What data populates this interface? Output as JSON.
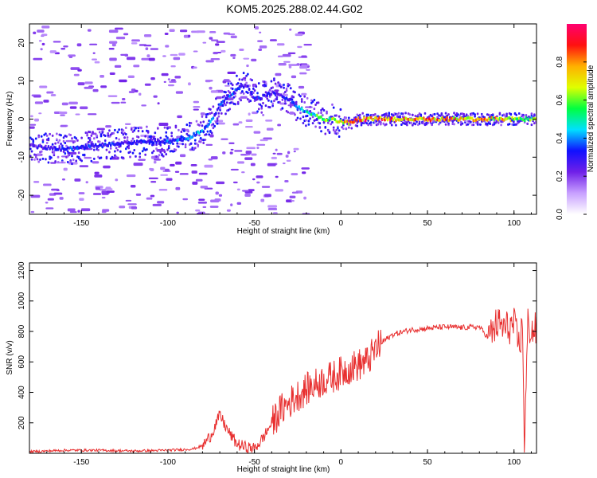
{
  "figure_title": "KOM5.2025.288.02.44.G02",
  "chart_data": [
    {
      "type": "heatmap",
      "title": "KOM5.2025.288.02.44.G02",
      "xlabel": "Height of straight line (km)",
      "ylabel": "Frequency (Hz)",
      "xlim": [
        -180,
        113
      ],
      "ylim": [
        -25,
        25
      ],
      "x_ticks": [
        -150,
        -100,
        -50,
        0,
        50,
        100
      ],
      "x_tick_labels": [
        "-150",
        "-100",
        "-50",
        "0",
        "50",
        "100"
      ],
      "y_ticks": [
        -20,
        -10,
        0,
        10,
        20
      ],
      "y_tick_labels": [
        "-20",
        "-10",
        "0",
        "10",
        "20"
      ],
      "colorbar": {
        "label": "Normalized spectral amplitude",
        "range": [
          0,
          1
        ],
        "ticks": [
          0.0,
          0.2,
          0.4,
          0.6,
          0.8
        ],
        "tick_labels": [
          "0.0",
          "0.2",
          "0.4",
          "0.6",
          "0.8"
        ],
        "colors": [
          "#ffffff",
          "#c8a0ff",
          "#7020e8",
          "#1010ff",
          "#00e0ff",
          "#00ff40",
          "#e0ff00",
          "#ffb000",
          "#ff1010",
          "#ff0070"
        ]
      },
      "ridge": {
        "height_km": [
          -180,
          -160,
          -140,
          -120,
          -100,
          -90,
          -80,
          -75,
          -70,
          -65,
          -60,
          -55,
          -50,
          -45,
          -40,
          -35,
          -30,
          -25,
          -20,
          -15,
          -10,
          -5,
          0,
          5,
          10,
          20,
          40,
          60,
          80,
          100,
          113
        ],
        "freq_hz": [
          -7,
          -8,
          -7,
          -6,
          -6,
          -5,
          -3,
          0,
          4,
          6,
          8,
          9,
          5,
          6,
          7,
          6,
          5,
          3,
          2,
          1,
          0,
          0,
          -1,
          -1,
          0,
          0,
          0,
          0,
          0,
          0,
          0
        ],
        "amplitude": [
          0.25,
          0.35,
          0.35,
          0.3,
          0.4,
          0.4,
          0.45,
          0.4,
          0.35,
          0.4,
          0.35,
          0.3,
          0.35,
          0.3,
          0.3,
          0.3,
          0.35,
          0.4,
          0.5,
          0.6,
          0.6,
          0.7,
          0.8,
          0.85,
          0.9,
          0.92,
          0.88,
          0.85,
          0.8,
          0.75,
          0.6
        ]
      }
    },
    {
      "type": "line",
      "title": "",
      "xlabel": "Height of straight line (km)",
      "ylabel": "SNR (v/v)",
      "xlim": [
        -180,
        113
      ],
      "ylim": [
        0,
        1250
      ],
      "x_ticks": [
        -150,
        -100,
        -50,
        0,
        50,
        100
      ],
      "x_tick_labels": [
        "-150",
        "-100",
        "-50",
        "0",
        "50",
        "100"
      ],
      "y_ticks": [
        200,
        400,
        600,
        800,
        1000,
        1200
      ],
      "y_tick_labels": [
        "200",
        "400",
        "600",
        "800",
        "1000",
        "1200"
      ],
      "color": "#e83030",
      "series": [
        {
          "name": "SNR",
          "x": [
            -180,
            -160,
            -140,
            -120,
            -100,
            -90,
            -85,
            -80,
            -75,
            -72,
            -70,
            -65,
            -60,
            -55,
            -50,
            -45,
            -40,
            -35,
            -30,
            -25,
            -20,
            -15,
            -10,
            -5,
            0,
            5,
            10,
            15,
            20,
            25,
            30,
            40,
            50,
            60,
            70,
            80,
            85,
            88,
            90,
            95,
            100,
            103,
            105,
            106,
            108,
            110,
            113
          ],
          "y": [
            10,
            20,
            20,
            15,
            20,
            25,
            30,
            50,
            120,
            200,
            250,
            140,
            60,
            40,
            30,
            100,
            200,
            280,
            330,
            380,
            420,
            450,
            480,
            500,
            530,
            560,
            580,
            600,
            680,
            740,
            780,
            810,
            820,
            830,
            825,
            830,
            760,
            800,
            850,
            820,
            840,
            700,
            850,
            30,
            850,
            800,
            810
          ]
        }
      ]
    }
  ]
}
